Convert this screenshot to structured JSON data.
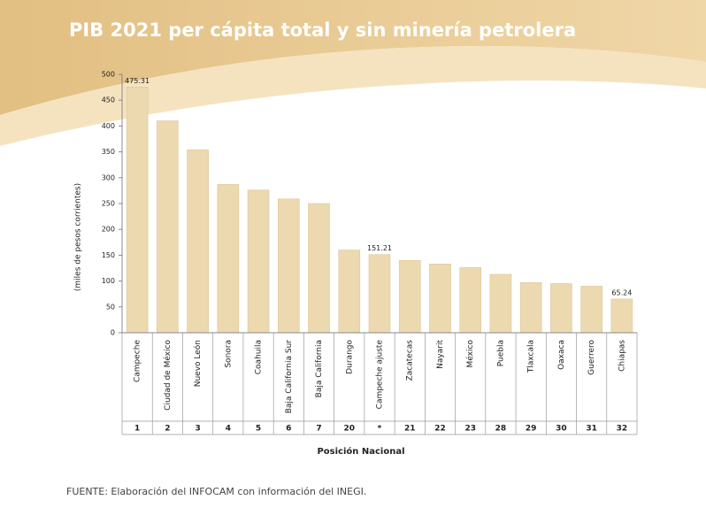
{
  "chart_data": {
    "type": "bar",
    "title": "PIB 2021 per cápita total y sin minería petrolera",
    "y_label": "(miles de pesos corrientes)",
    "x_label": "Posición Nacional",
    "source": "FUENTE: Elaboración del INFOCAM con información del INEGI.",
    "categories": [
      "Campeche",
      "Ciudad de México",
      "Nuevo León",
      "Sonora",
      "Coahuila",
      "Baja California Sur",
      "Baja California",
      "Durango",
      "Campeche ajuste",
      "Zacatecas",
      "Nayarit",
      "México",
      "Puebla",
      "Tlaxcala",
      "Oaxaca",
      "Guerrero",
      "Chiapas"
    ],
    "ranks": [
      1,
      2,
      3,
      4,
      5,
      6,
      7,
      20,
      "*",
      21,
      22,
      23,
      28,
      29,
      30,
      31,
      32
    ],
    "values": [
      475.31,
      410,
      354,
      287,
      276,
      259,
      250,
      160,
      151.21,
      140,
      133,
      126,
      113,
      97,
      95,
      90,
      65.24
    ],
    "value_labels": [
      "475.31",
      null,
      null,
      null,
      null,
      null,
      null,
      null,
      "151.21",
      null,
      null,
      null,
      null,
      null,
      null,
      null,
      "65.24"
    ],
    "color": "#ecd9b0",
    "ylim": [
      0,
      500
    ],
    "yticks": [
      0,
      50,
      100,
      150,
      200,
      250,
      300,
      350,
      400,
      450,
      500
    ]
  }
}
